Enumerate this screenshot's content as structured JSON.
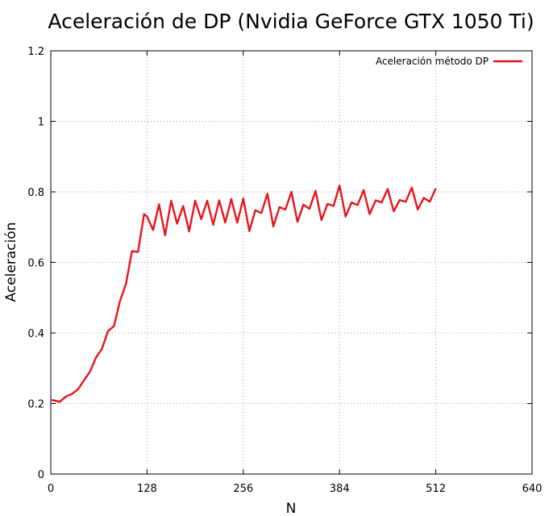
{
  "chart_data": {
    "type": "line",
    "title": "Aceleración de DP (Nvidia GeForce GTX 1050 Ti)",
    "xlabel": "N",
    "ylabel": "Aceleración",
    "xlim": [
      0,
      640
    ],
    "ylim": [
      0,
      1.2
    ],
    "xticks": [
      0,
      128,
      256,
      384,
      512,
      640
    ],
    "yticks": [
      0,
      0.2,
      0.4,
      0.6,
      0.8,
      1,
      1.2
    ],
    "xtick_labels": [
      "0",
      "128",
      "256",
      "384",
      "512",
      "640"
    ],
    "ytick_labels": [
      "0",
      "0.2",
      "0.4",
      "0.6",
      "0.8",
      "1",
      "1.2"
    ],
    "grid": true,
    "legend_position": "top-right",
    "series": [
      {
        "name": "Aceleración método DP",
        "color": "#e8141c",
        "x": [
          1,
          12,
          20,
          28,
          36,
          44,
          52,
          60,
          68,
          76,
          84,
          92,
          100,
          108,
          116,
          124,
          128,
          136,
          144,
          152,
          160,
          168,
          176,
          184,
          192,
          200,
          208,
          216,
          224,
          232,
          240,
          248,
          256,
          264,
          272,
          280,
          288,
          296,
          304,
          312,
          320,
          328,
          336,
          344,
          352,
          360,
          368,
          376,
          384,
          392,
          400,
          408,
          416,
          424,
          432,
          440,
          448,
          456,
          464,
          472,
          480,
          488,
          496,
          504,
          512
        ],
        "y": [
          0.21,
          0.205,
          0.22,
          0.227,
          0.24,
          0.265,
          0.29,
          0.33,
          0.355,
          0.405,
          0.42,
          0.49,
          0.54,
          0.632,
          0.63,
          0.737,
          0.73,
          0.692,
          0.765,
          0.677,
          0.775,
          0.71,
          0.76,
          0.688,
          0.775,
          0.723,
          0.775,
          0.707,
          0.776,
          0.713,
          0.78,
          0.713,
          0.781,
          0.689,
          0.748,
          0.74,
          0.795,
          0.702,
          0.757,
          0.75,
          0.8,
          0.715,
          0.764,
          0.752,
          0.803,
          0.72,
          0.766,
          0.76,
          0.818,
          0.73,
          0.77,
          0.763,
          0.805,
          0.737,
          0.776,
          0.77,
          0.808,
          0.745,
          0.777,
          0.772,
          0.812,
          0.75,
          0.783,
          0.772,
          0.81
        ]
      }
    ]
  }
}
